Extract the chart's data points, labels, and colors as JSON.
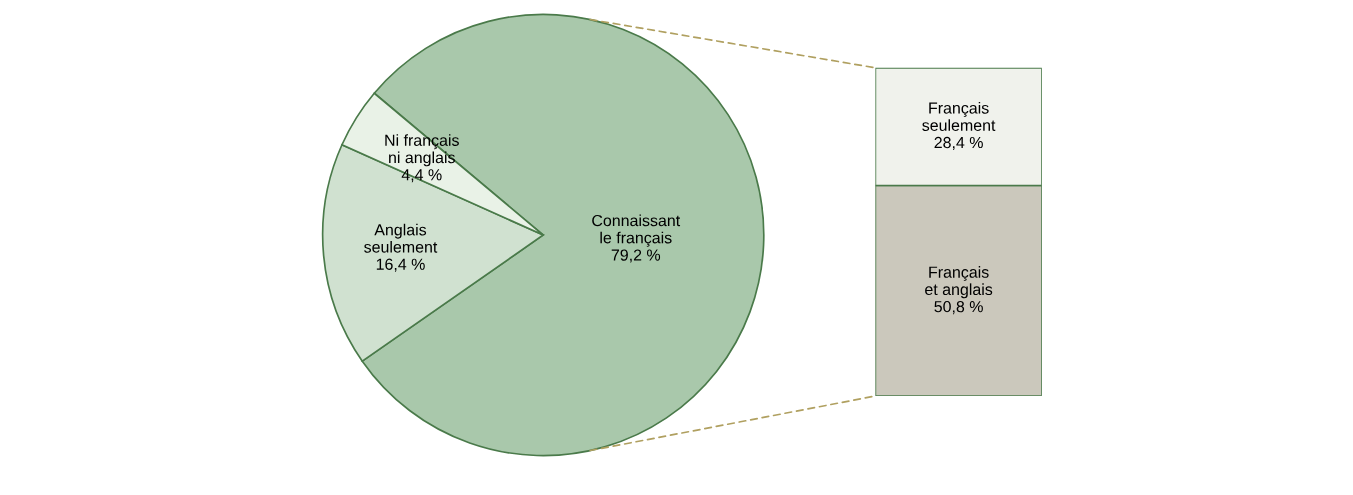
{
  "chart_data": [
    {
      "type": "pie",
      "categories": [
        "Connaissant\nle français",
        "Anglais\nseulement",
        "Ni français\nni anglais"
      ],
      "values": [
        79.2,
        16.4,
        4.4
      ],
      "value_labels": [
        "79,2 %",
        "16,4 %",
        "4,4 %"
      ],
      "colors": [
        "#a9c8ab",
        "#d0e1d0",
        "#e9f2e7"
      ]
    },
    {
      "type": "bar",
      "stacked": true,
      "categories": [
        null
      ],
      "series": [
        {
          "name": "Français\net anglais",
          "color": "#cbc8bc",
          "values": [
            50.8
          ],
          "value_labels": [
            "50,8 %"
          ]
        },
        {
          "name": "Français\nseulement",
          "color": "#f0f2ec",
          "values": [
            28.4
          ],
          "value_labels": [
            "28,4 %"
          ]
        }
      ]
    }
  ]
}
